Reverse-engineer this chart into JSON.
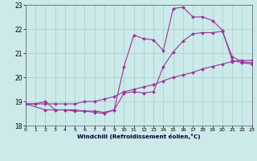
{
  "bg_color": "#cceaea",
  "grid_color": "#aacccc",
  "line_color": "#993399",
  "xlim": [
    0,
    23
  ],
  "ylim": [
    18.0,
    23.0
  ],
  "xtick_vals": [
    0,
    1,
    2,
    3,
    4,
    5,
    6,
    7,
    8,
    9,
    10,
    11,
    12,
    13,
    14,
    15,
    16,
    17,
    18,
    19,
    20,
    21,
    22,
    23
  ],
  "ytick_vals": [
    18,
    19,
    20,
    21,
    22,
    23
  ],
  "xlabel": "Windchill (Refroidissement éolien,°C)",
  "line1_x": [
    0,
    1,
    2,
    3,
    4,
    5,
    6,
    7,
    8,
    9,
    10,
    11,
    12,
    13,
    14,
    15,
    16,
    17,
    18,
    19,
    20,
    21,
    22,
    23
  ],
  "line1_y": [
    18.9,
    18.9,
    18.9,
    18.9,
    18.9,
    18.9,
    19.0,
    19.0,
    19.1,
    19.2,
    19.4,
    19.5,
    19.6,
    19.7,
    19.85,
    20.0,
    20.1,
    20.2,
    20.35,
    20.45,
    20.55,
    20.65,
    20.7,
    20.7
  ],
  "line2_x": [
    0,
    1,
    2,
    3,
    4,
    5,
    6,
    7,
    8,
    9,
    10,
    11,
    12,
    13,
    14,
    15,
    16,
    17,
    18,
    19,
    20,
    21,
    22,
    23
  ],
  "line2_y": [
    18.9,
    18.9,
    19.0,
    18.65,
    18.65,
    18.65,
    18.6,
    18.6,
    18.55,
    18.65,
    19.35,
    19.4,
    19.35,
    19.4,
    20.45,
    21.05,
    21.5,
    21.8,
    21.85,
    21.85,
    21.9,
    20.85,
    20.65,
    20.6
  ],
  "line3_x": [
    0,
    2,
    3,
    4,
    5,
    6,
    7,
    8,
    9,
    10,
    11,
    12,
    13,
    14,
    15,
    16,
    17,
    18,
    19,
    20,
    21,
    22,
    23
  ],
  "line3_y": [
    18.9,
    18.65,
    18.65,
    18.65,
    18.6,
    18.6,
    18.55,
    18.5,
    18.65,
    20.45,
    21.75,
    21.6,
    21.55,
    21.1,
    22.85,
    22.9,
    22.5,
    22.5,
    22.35,
    21.95,
    20.7,
    20.6,
    20.55
  ]
}
